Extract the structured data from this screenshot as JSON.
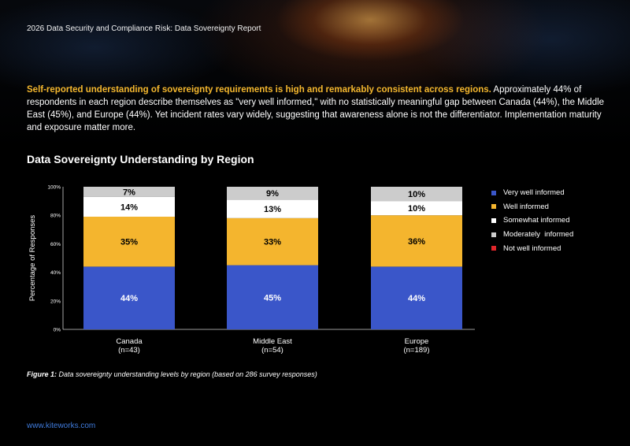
{
  "header": {
    "title": "2026 Data Security and Compliance Risk: Data Sovereignty Report"
  },
  "intro": {
    "highlight": "Self-reported understanding of sovereignty requirements is high and remarkably consistent across regions.",
    "body": " Approximately 44% of respondents in each region describe themselves as \"very well informed,\" with no statistically meaningful gap between Canada (44%), the Middle East (45%), and Europe (44%). Yet incident rates vary widely, suggesting that awareness alone is not the differentiator. Implementation maturity and exposure matter more."
  },
  "chart_data": {
    "type": "bar",
    "stacked": true,
    "title": "Data Sovereignty Understanding by Region",
    "ylabel": "Percentage of Responses",
    "xlabel": "",
    "ylim": [
      0,
      100
    ],
    "yticks": [
      "0%",
      "20%",
      "40%",
      "60%",
      "80%",
      "100%"
    ],
    "categories": [
      {
        "name": "Canada",
        "n": "(n=43)"
      },
      {
        "name": "Middle East",
        "n": "(n=54)"
      },
      {
        "name": "Europe",
        "n": "(n=189)"
      }
    ],
    "series": [
      {
        "name": "Very well informed",
        "color": "#3a56c9",
        "values": [
          44,
          45,
          44
        ],
        "labels": [
          "44%",
          "45%",
          "44%"
        ],
        "label_color": "#ffffff"
      },
      {
        "name": "Well informed",
        "color": "#f4b52e",
        "values": [
          35,
          33,
          36
        ],
        "labels": [
          "35%",
          "33%",
          "36%"
        ],
        "label_color": "#000000"
      },
      {
        "name": "Somewhat informed",
        "color": "#ffffff",
        "values": [
          14,
          13,
          10
        ],
        "labels": [
          "14%",
          "13%",
          "10%"
        ],
        "label_color": "#000000"
      },
      {
        "name": "Moderately  informed",
        "color": "#cccccc",
        "values": [
          7,
          9,
          10
        ],
        "labels": [
          "7%",
          "9%",
          "10%"
        ],
        "label_color": "#000000"
      },
      {
        "name": "Not well informed",
        "color": "#e0262a",
        "values": [
          0,
          0,
          0
        ],
        "labels": [
          "",
          "",
          ""
        ],
        "label_color": "#ffffff"
      }
    ],
    "legend_position": "right",
    "grid": false
  },
  "caption": {
    "lead": "Figure 1:",
    "text": " Data sovereignty understanding levels by region (based on 286 survey responses)"
  },
  "footer": {
    "link": "www.kiteworks.com"
  }
}
